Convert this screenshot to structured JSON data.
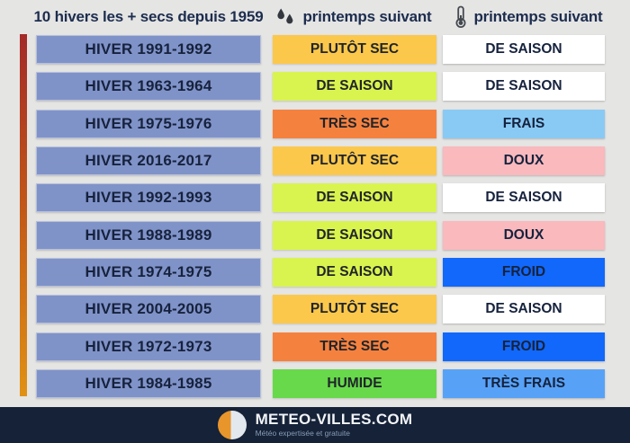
{
  "header": {
    "winters_title": "10 hivers les + secs depuis 1959",
    "precip_title": "printemps suivant",
    "temp_title": "printemps suivant"
  },
  "colors": {
    "background": "#e5e5e4",
    "header_text": "#1d2d4e",
    "winter_cell": "#8093c8",
    "accent_bar_top": "#a32a28",
    "accent_bar_bottom": "#e09114",
    "plutot_sec": "#fcc84b",
    "de_saison_precip": "#d9f44e",
    "tres_sec": "#f5813f",
    "humide": "#67d94b",
    "de_saison_temp": "#ffffff",
    "frais": "#89caf5",
    "doux": "#f9b9bd",
    "froid": "#1168fb",
    "tres_frais": "#57a2f7",
    "footer_bg": "#152238",
    "logo_orange": "#e8952b"
  },
  "rows": [
    {
      "winter": "HIVER 1991-1992",
      "precip": {
        "label": "PLUTÔT SEC",
        "color": "#fcc84b"
      },
      "temp": {
        "label": "DE SAISON",
        "color": "#ffffff"
      }
    },
    {
      "winter": "HIVER 1963-1964",
      "precip": {
        "label": "DE SAISON",
        "color": "#d9f44e"
      },
      "temp": {
        "label": "DE SAISON",
        "color": "#ffffff"
      }
    },
    {
      "winter": "HIVER 1975-1976",
      "precip": {
        "label": "TRÈS SEC",
        "color": "#f5813f"
      },
      "temp": {
        "label": "FRAIS",
        "color": "#89caf5"
      }
    },
    {
      "winter": "HIVER 2016-2017",
      "precip": {
        "label": "PLUTÔT SEC",
        "color": "#fcc84b"
      },
      "temp": {
        "label": "DOUX",
        "color": "#f9b9bd"
      }
    },
    {
      "winter": "HIVER 1992-1993",
      "precip": {
        "label": "DE SAISON",
        "color": "#d9f44e"
      },
      "temp": {
        "label": "DE SAISON",
        "color": "#ffffff"
      }
    },
    {
      "winter": "HIVER 1988-1989",
      "precip": {
        "label": "DE SAISON",
        "color": "#d9f44e"
      },
      "temp": {
        "label": "DOUX",
        "color": "#f9b9bd"
      }
    },
    {
      "winter": "HIVER 1974-1975",
      "precip": {
        "label": "DE SAISON",
        "color": "#d9f44e"
      },
      "temp": {
        "label": "FROID",
        "color": "#1168fb"
      }
    },
    {
      "winter": "HIVER 2004-2005",
      "precip": {
        "label": "PLUTÔT SEC",
        "color": "#fcc84b"
      },
      "temp": {
        "label": "DE SAISON",
        "color": "#ffffff"
      }
    },
    {
      "winter": "HIVER 1972-1973",
      "precip": {
        "label": "TRÈS SEC",
        "color": "#f5813f"
      },
      "temp": {
        "label": "FROID",
        "color": "#1168fb"
      }
    },
    {
      "winter": "HIVER 1984-1985",
      "precip": {
        "label": "HUMIDE",
        "color": "#67d94b"
      },
      "temp": {
        "label": "TRÈS FRAIS",
        "color": "#57a2f7"
      }
    }
  ],
  "footer": {
    "brand": "METEO-VILLES.COM",
    "tagline": "Météo expertisée et gratuite"
  },
  "chart_data": {
    "type": "table",
    "title": "10 hivers les + secs depuis 1959",
    "columns": [
      "Hiver",
      "Précipitations printemps suivant",
      "Températures printemps suivant"
    ],
    "rows": [
      [
        "HIVER 1991-1992",
        "PLUTÔT SEC",
        "DE SAISON"
      ],
      [
        "HIVER 1963-1964",
        "DE SAISON",
        "DE SAISON"
      ],
      [
        "HIVER 1975-1976",
        "TRÈS SEC",
        "FRAIS"
      ],
      [
        "HIVER 2016-2017",
        "PLUTÔT SEC",
        "DOUX"
      ],
      [
        "HIVER 1992-1993",
        "DE SAISON",
        "DE SAISON"
      ],
      [
        "HIVER 1988-1989",
        "DE SAISON",
        "DOUX"
      ],
      [
        "HIVER 1974-1975",
        "DE SAISON",
        "FROID"
      ],
      [
        "HIVER 2004-2005",
        "PLUTÔT SEC",
        "DE SAISON"
      ],
      [
        "HIVER 1972-1973",
        "TRÈS SEC",
        "FROID"
      ],
      [
        "HIVER 1984-1985",
        "HUMIDE",
        "TRÈS FRAIS"
      ]
    ]
  }
}
